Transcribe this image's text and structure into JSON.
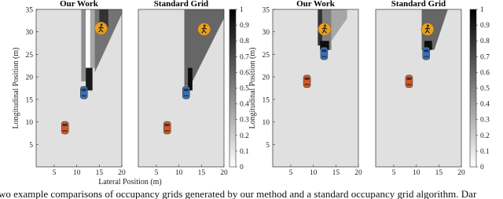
{
  "figures": [
    {
      "xlabel": "Lateral Position (m)",
      "ylabel": "Longitudinal Position (m)",
      "xlim": [
        1,
        20
      ],
      "ylim": [
        0,
        35
      ],
      "xticks": [
        5,
        10,
        15,
        20
      ],
      "yticks": [
        5,
        10,
        15,
        20,
        25,
        30,
        35
      ],
      "clim": [
        0,
        1
      ],
      "cticks": [
        0,
        0.1,
        0.2,
        0.3,
        0.4,
        0.5,
        0.6,
        0.7,
        0.8,
        0.9,
        1
      ],
      "background": 0.12,
      "panels": [
        {
          "title": "Our Work",
          "regions": [
            {
              "value": 0.45,
              "x": [
                11,
                12,
                12,
                11
              ],
              "y": [
                19,
                19,
                35,
                35
              ]
            },
            {
              "value": 0.02,
              "x": [
                12,
                13,
                13,
                12
              ],
              "y": [
                22,
                22,
                35,
                35
              ]
            },
            {
              "value": 0.35,
              "x": [
                13,
                14,
                14,
                13
              ],
              "y": [
                22,
                22,
                35,
                35
              ]
            },
            {
              "value": 0.55,
              "x": [
                14,
                20,
                20,
                14
              ],
              "y": [
                21,
                34,
                35,
                35
              ]
            },
            {
              "value": 0.8,
              "x": [
                15,
                17,
                17,
                15
              ],
              "y": [
                31,
                31,
                35,
                35
              ]
            },
            {
              "value": 0.9,
              "x": [
                12,
                13.5,
                13.5,
                12
              ],
              "y": [
                17,
                17,
                22,
                22
              ]
            }
          ],
          "ego": {
            "x": 11.6,
            "y": 16.5
          },
          "car": {
            "x": 7.4,
            "y": 8.7
          },
          "pedestrian": {
            "x": 15.4,
            "y": 30.8
          }
        },
        {
          "title": "Standard Grid",
          "regions": [
            {
              "value": 0.6,
              "x": [
                11.2,
                12.5,
                20,
                20,
                11.2
              ],
              "y": [
                18,
                18,
                33,
                35,
                35
              ]
            },
            {
              "value": 0.95,
              "x": [
                12,
                13,
                13,
                12
              ],
              "y": [
                17,
                17,
                22,
                22
              ]
            }
          ],
          "ego": {
            "x": 11.6,
            "y": 16.5
          },
          "car": {
            "x": 7.4,
            "y": 8.7
          },
          "pedestrian": {
            "x": 15.6,
            "y": 30.6
          }
        }
      ]
    },
    {
      "ylabel": "Longitudinal Position (m)",
      "xlim": [
        1,
        20
      ],
      "ylim": [
        0,
        35
      ],
      "xticks": [
        5,
        10,
        15,
        20
      ],
      "yticks": [
        5,
        10,
        15,
        20,
        25,
        30,
        35
      ],
      "clim": [
        0,
        1
      ],
      "cticks": [
        0,
        0.1,
        0.2,
        0.3,
        0.4,
        0.5,
        0.6,
        0.7,
        0.8,
        0.9,
        1
      ],
      "background": 0.12,
      "panels": [
        {
          "title": "Our Work",
          "regions": [
            {
              "value": 0.8,
              "x": [
                11,
                12,
                12,
                11
              ],
              "y": [
                27,
                27,
                35,
                35
              ]
            },
            {
              "value": 0.5,
              "x": [
                12,
                14,
                14,
                12
              ],
              "y": [
                26,
                26,
                35,
                35
              ]
            },
            {
              "value": 0.35,
              "x": [
                14,
                17.5,
                17.5,
                14
              ],
              "y": [
                28,
                33,
                35,
                35
              ]
            },
            {
              "value": 0.95,
              "x": [
                11.5,
                13.5,
                13.5,
                11.5
              ],
              "y": [
                26,
                26,
                28,
                28
              ]
            }
          ],
          "ego": {
            "x": 12.4,
            "y": 25.2
          },
          "car": {
            "x": 8.6,
            "y": 19
          },
          "pedestrian": {
            "x": 12.5,
            "y": 30.6
          }
        },
        {
          "title": "Standard Grid",
          "regions": [
            {
              "value": 0.6,
              "x": [
                11.2,
                14,
                17,
                11.2
              ],
              "y": [
                26,
                26,
                35,
                35
              ]
            },
            {
              "value": 0.95,
              "x": [
                11.8,
                13.5,
                13.5,
                11.8
              ],
              "y": [
                26,
                26,
                28,
                28
              ]
            }
          ],
          "ego": {
            "x": 12.2,
            "y": 25.2
          },
          "car": {
            "x": 8.4,
            "y": 19
          },
          "pedestrian": {
            "x": 12.5,
            "y": 30.6
          }
        }
      ]
    }
  ],
  "caption": "wo example comparisons of occupancy grids generated by our method and a standard occupancy grid algorithm. Dar"
}
